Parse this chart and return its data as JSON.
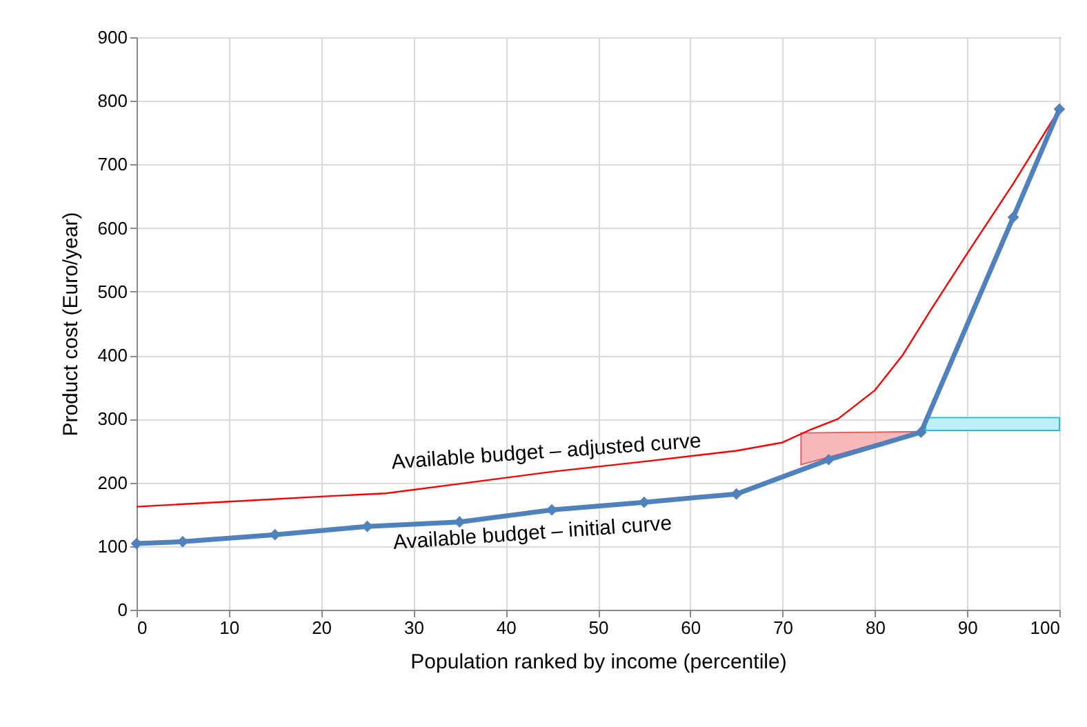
{
  "chart_data": {
    "type": "line",
    "xlabel": "Population ranked by income (percentile)",
    "ylabel": "Product cost (Euro/year)",
    "xlim": [
      0,
      100
    ],
    "xticks": [
      0,
      10,
      20,
      30,
      40,
      50,
      60,
      70,
      80,
      90,
      100
    ],
    "ylim": [
      0,
      900
    ],
    "yticks": [
      0,
      100,
      200,
      300,
      400,
      500,
      600,
      700,
      800,
      900
    ],
    "grid": true,
    "line_style": "solid",
    "series": [
      {
        "color": "#ff0000",
        "marker": "none",
        "x": [
          0,
          10,
          20,
          27,
          35,
          45,
          55,
          65,
          70,
          73,
          76,
          80,
          83,
          86,
          90,
          95,
          100
        ],
        "values": [
          162,
          170,
          178,
          183,
          198,
          217,
          233,
          250,
          263,
          283,
          300,
          345,
          400,
          470,
          560,
          670,
          787
        ]
      },
      {
        "color": "#4f81bd",
        "marker": "diamond",
        "x": [
          0,
          5,
          15,
          25,
          35,
          45,
          55,
          65,
          75,
          85,
          95,
          100
        ],
        "values": [
          104,
          107,
          118,
          131,
          138,
          157,
          169,
          182,
          236,
          279,
          617,
          787
        ]
      }
    ],
    "annotations": [
      "Available budget – adjusted curve",
      "Available budget – initial curve"
    ]
  }
}
